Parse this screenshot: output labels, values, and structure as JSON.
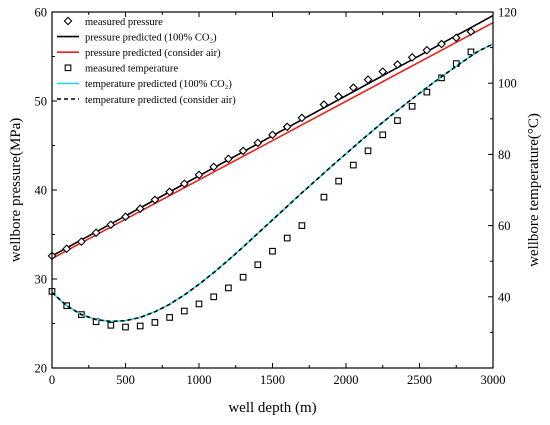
{
  "chart_data": {
    "type": "line",
    "xlabel": "well depth (m)",
    "ylabel_left": "wellbore pressure(MPa)",
    "ylabel_right": "wellbore temperature(°C)",
    "xlim": [
      0,
      3000
    ],
    "ylim_left": [
      20,
      60
    ],
    "ylim_right": [
      20,
      120
    ],
    "x_ticks": [
      0,
      500,
      1000,
      1500,
      2000,
      2500,
      3000
    ],
    "y_left_ticks": [
      20,
      30,
      40,
      50,
      60
    ],
    "y_right_ticks": [
      40,
      60,
      80,
      100,
      120
    ],
    "grid": false,
    "legend_position": "top-left",
    "series": [
      {
        "name": "measured pressure",
        "axis": "left",
        "kind": "scatter",
        "marker": "diamond",
        "color": "#000000",
        "x": [
          0,
          100,
          200,
          300,
          400,
          500,
          600,
          700,
          800,
          900,
          1000,
          1100,
          1200,
          1300,
          1400,
          1500,
          1600,
          1700,
          1850,
          1950,
          2050,
          2150,
          2250,
          2350,
          2450,
          2550,
          2650,
          2750,
          2850
        ],
        "y": [
          32.6,
          33.4,
          34.2,
          35.2,
          36.1,
          37.0,
          37.9,
          38.9,
          39.8,
          40.7,
          41.7,
          42.6,
          43.5,
          44.4,
          45.3,
          46.2,
          47.1,
          48.1,
          49.6,
          50.5,
          51.5,
          52.4,
          53.3,
          54.1,
          54.9,
          55.7,
          56.4,
          57.1,
          57.8
        ]
      },
      {
        "name": "pressure predicted (100% CO₂)",
        "axis": "left",
        "kind": "line",
        "color": "#000000",
        "dash": "none",
        "x": [
          0,
          3000
        ],
        "y": [
          32.6,
          59.6
        ]
      },
      {
        "name": "pressure predicted (consider air)",
        "axis": "left",
        "kind": "line",
        "color": "#e8221b",
        "dash": "none",
        "x": [
          0,
          3000
        ],
        "y": [
          32.3,
          58.8
        ]
      },
      {
        "name": "measured temperature",
        "axis": "right",
        "kind": "scatter",
        "marker": "square",
        "color": "#000000",
        "x": [
          0,
          100,
          200,
          300,
          400,
          500,
          600,
          700,
          800,
          900,
          1000,
          1100,
          1200,
          1300,
          1400,
          1500,
          1600,
          1700,
          1850,
          1950,
          2050,
          2150,
          2250,
          2350,
          2450,
          2550,
          2650,
          2750,
          2850
        ],
        "y": [
          41.5,
          37.5,
          35.0,
          33.0,
          32.0,
          31.5,
          31.8,
          32.8,
          34.2,
          36.0,
          38.0,
          40.0,
          42.5,
          45.5,
          49.0,
          52.8,
          56.5,
          60.0,
          68.0,
          72.5,
          77.0,
          81.0,
          85.5,
          89.5,
          93.5,
          97.5,
          101.5,
          105.5,
          108.8
        ]
      },
      {
        "name": "temperature predicted (100% CO₂)",
        "axis": "right",
        "kind": "line",
        "color": "#29d6e8",
        "dash": "none",
        "x": [
          0,
          100,
          200,
          300,
          400,
          500,
          600,
          700,
          800,
          900,
          1000,
          1100,
          1200,
          1300,
          1400,
          1500,
          1600,
          1700,
          1800,
          1900,
          2000,
          2100,
          2200,
          2300,
          2400,
          2500,
          2600,
          2700,
          2800,
          2900,
          3000
        ],
        "y": [
          41.2,
          37.5,
          35.0,
          33.6,
          33.1,
          33.3,
          34.2,
          35.8,
          37.9,
          40.5,
          43.5,
          46.8,
          50.3,
          54.0,
          57.8,
          61.6,
          65.4,
          69.2,
          72.9,
          76.6,
          80.2,
          83.8,
          87.3,
          90.7,
          94.0,
          97.2,
          100.3,
          103.3,
          106.2,
          109.0,
          111.0
        ]
      },
      {
        "name": "temperature predicted (consider air)",
        "axis": "right",
        "kind": "line",
        "color": "#000000",
        "dash": "4,3",
        "x": [
          0,
          100,
          200,
          300,
          400,
          500,
          600,
          700,
          800,
          900,
          1000,
          1100,
          1200,
          1300,
          1400,
          1500,
          1600,
          1700,
          1800,
          1900,
          2000,
          2100,
          2200,
          2300,
          2400,
          2500,
          2600,
          2700,
          2800,
          2900,
          3000
        ],
        "y": [
          41.2,
          37.5,
          35.0,
          33.6,
          33.1,
          33.3,
          34.2,
          35.8,
          37.9,
          40.5,
          43.5,
          46.8,
          50.3,
          54.0,
          57.8,
          61.6,
          65.4,
          69.2,
          72.9,
          76.6,
          80.2,
          83.8,
          87.3,
          90.7,
          94.0,
          97.2,
          100.3,
          103.3,
          106.2,
          109.0,
          111.0
        ]
      }
    ]
  }
}
